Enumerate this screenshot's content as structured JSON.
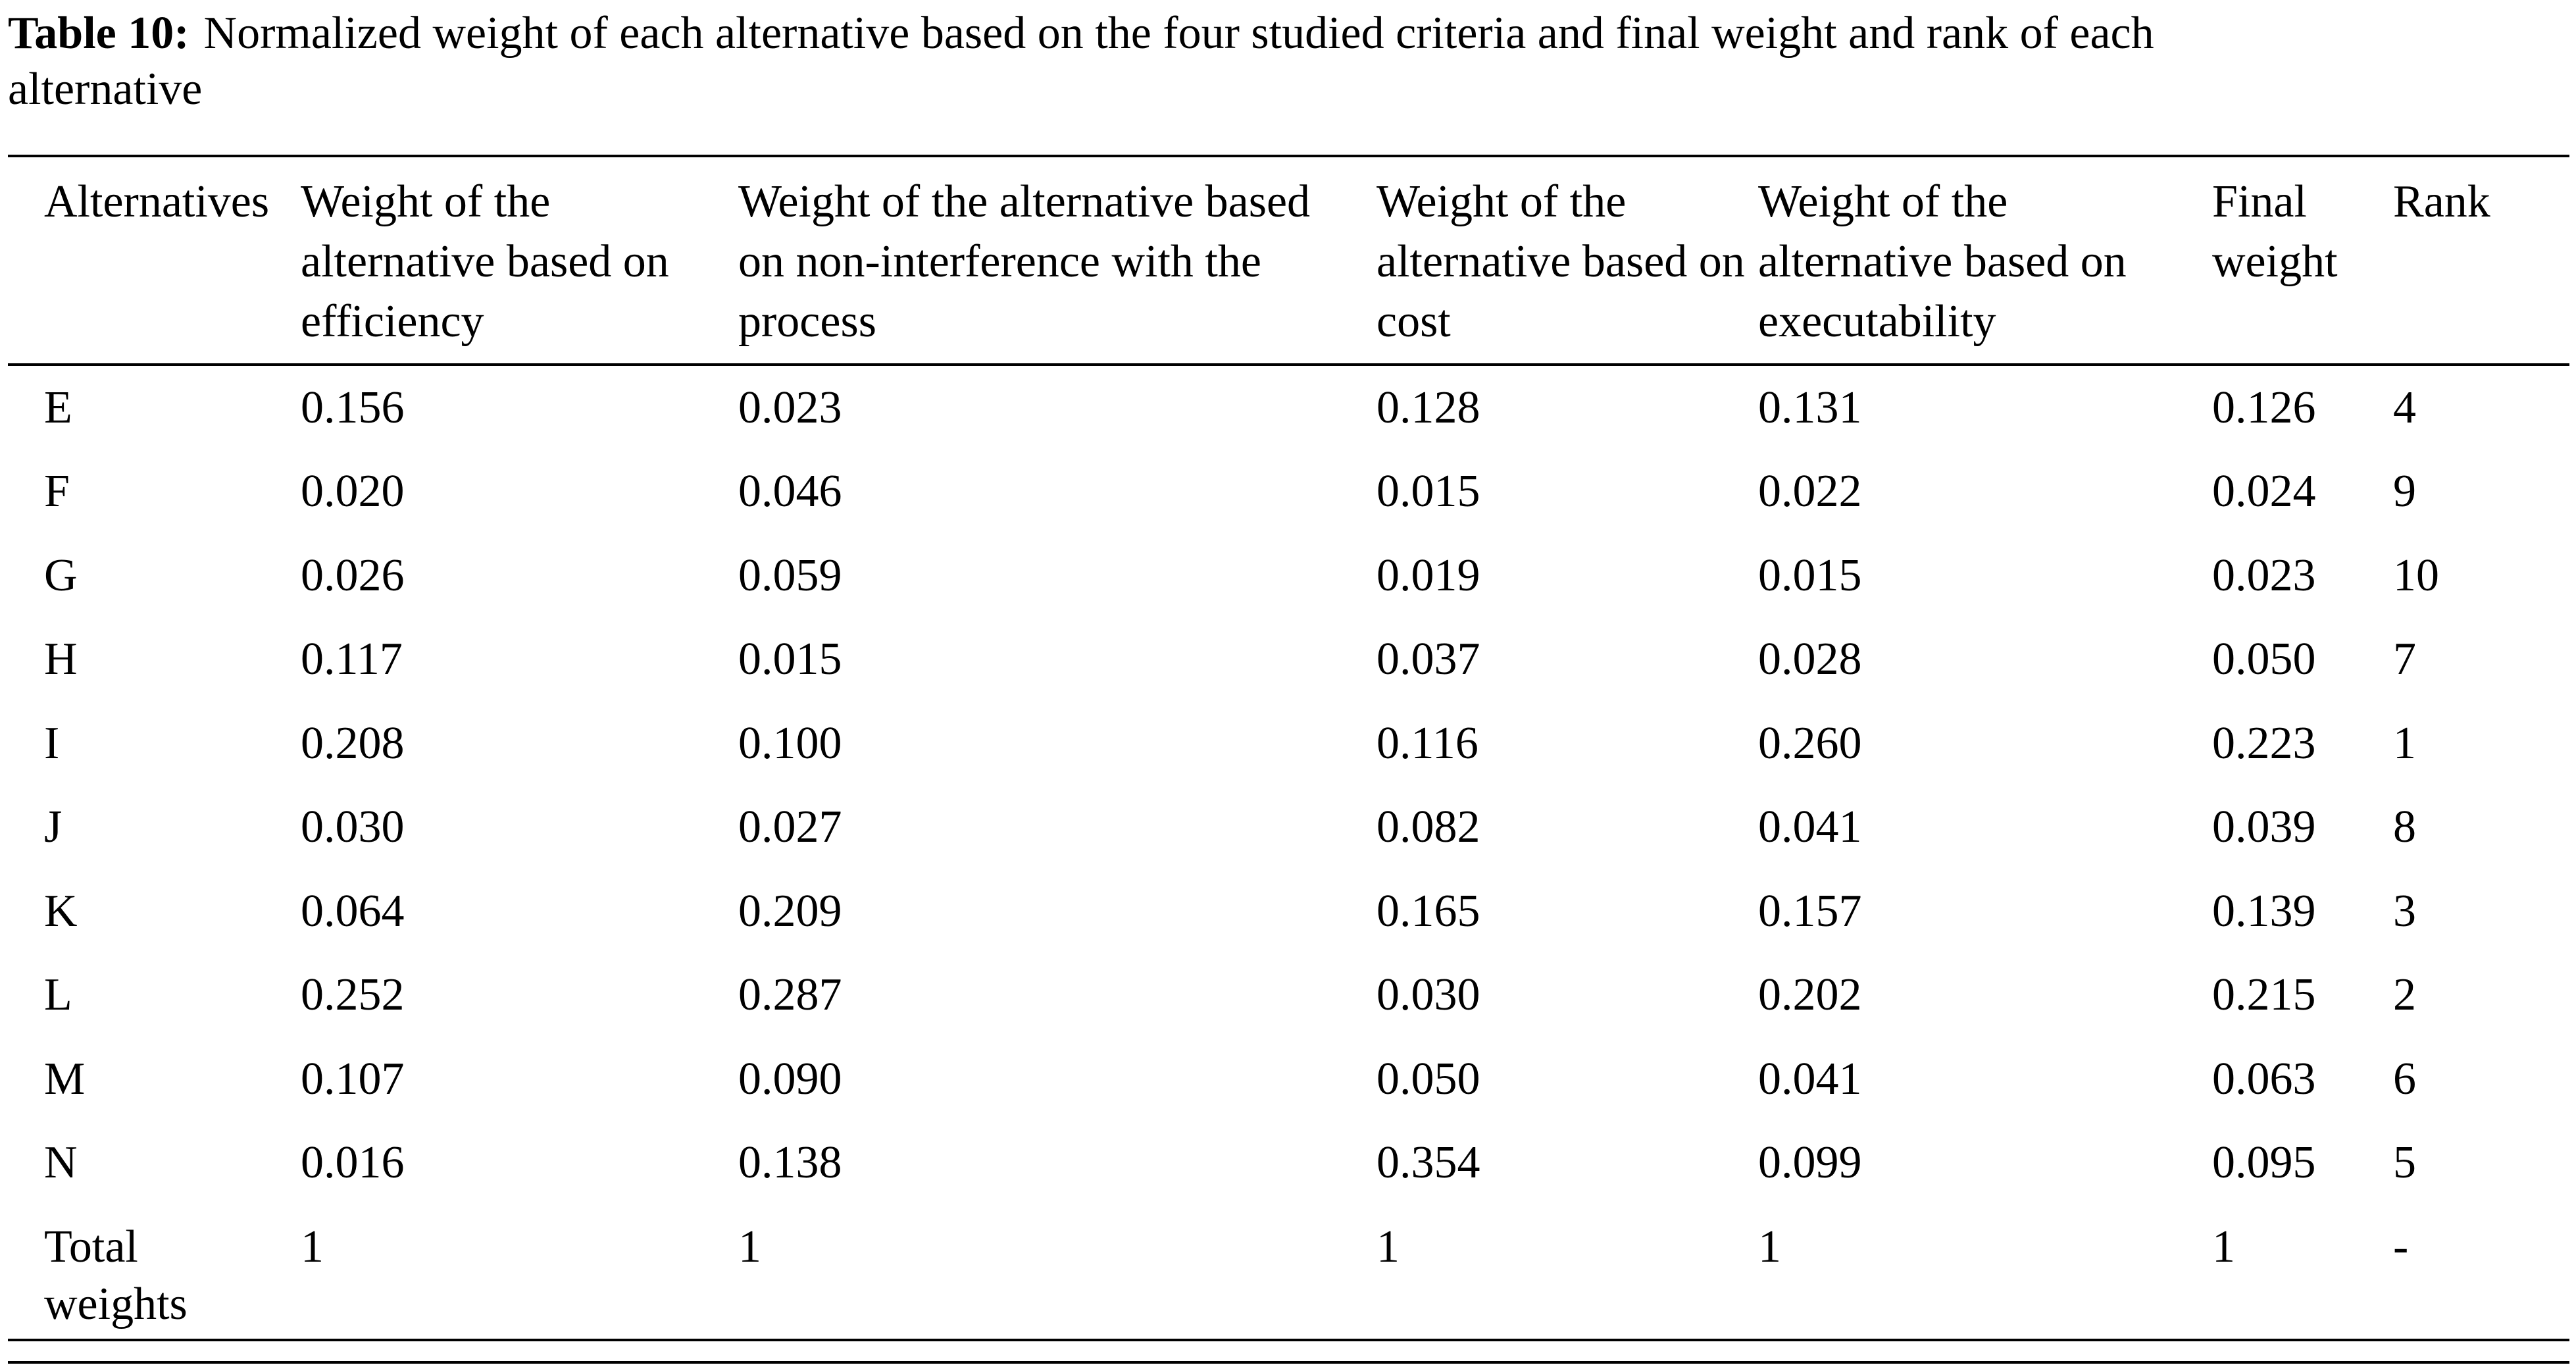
{
  "caption": {
    "label": "Table 10:",
    "text": "Normalized weight of each alternative based on the four studied criteria and final weight and rank of each alternative"
  },
  "chart_data": {
    "type": "table",
    "title": "Table 10: Normalized weight of each alternative based on the four studied criteria and final weight and rank of each alternative",
    "columns": [
      "Alternatives",
      "Weight of the alternative based on efficiency",
      "Weight of the alternative based on non-interference with the process",
      "Weight of the alternative based on cost",
      "Weight of the alternative based on executability",
      "Final weight",
      "Rank"
    ],
    "rows": [
      [
        "E",
        "0.156",
        "0.023",
        "0.128",
        "0.131",
        "0.126",
        "4"
      ],
      [
        "F",
        "0.020",
        "0.046",
        "0.015",
        "0.022",
        "0.024",
        "9"
      ],
      [
        "G",
        "0.026",
        "0.059",
        "0.019",
        "0.015",
        "0.023",
        "10"
      ],
      [
        "H",
        "0.117",
        "0.015",
        "0.037",
        "0.028",
        "0.050",
        "7"
      ],
      [
        "I",
        "0.208",
        "0.100",
        "0.116",
        "0.260",
        "0.223",
        "1"
      ],
      [
        "J",
        "0.030",
        "0.027",
        "0.082",
        "0.041",
        "0.039",
        "8"
      ],
      [
        "K",
        "0.064",
        "0.209",
        "0.165",
        "0.157",
        "0.139",
        "3"
      ],
      [
        "L",
        "0.252",
        "0.287",
        "0.030",
        "0.202",
        "0.215",
        "2"
      ],
      [
        "M",
        "0.107",
        "0.090",
        "0.050",
        "0.041",
        "0.063",
        "6"
      ],
      [
        "N",
        "0.016",
        "0.138",
        "0.354",
        "0.099",
        "0.095",
        "5"
      ],
      [
        "Total weights",
        "1",
        "1",
        "1",
        "1",
        "1",
        "-"
      ]
    ]
  }
}
